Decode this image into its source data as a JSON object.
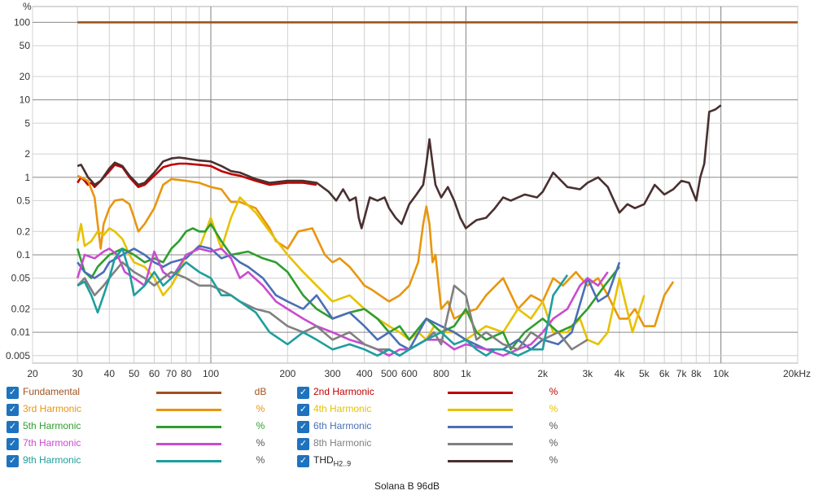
{
  "footer_label": "Solana B 96dB",
  "chart_data": {
    "type": "line",
    "title": "",
    "xlabel": "",
    "ylabel": "%",
    "xscale": "log",
    "yscale": "log",
    "xlim": [
      20,
      20000
    ],
    "ylim": [
      0.004,
      160
    ],
    "grid": true,
    "x_major_ticks": [
      {
        "v": 20,
        "t": "20"
      },
      {
        "v": 30,
        "t": "30"
      },
      {
        "v": 40,
        "t": "40"
      },
      {
        "v": 50,
        "t": "50"
      },
      {
        "v": 60,
        "t": "60"
      },
      {
        "v": 70,
        "t": "70"
      },
      {
        "v": 80,
        "t": "80"
      },
      {
        "v": 100,
        "t": "100"
      },
      {
        "v": 200,
        "t": "200"
      },
      {
        "v": 300,
        "t": "300"
      },
      {
        "v": 400,
        "t": "400"
      },
      {
        "v": 500,
        "t": "500"
      },
      {
        "v": 600,
        "t": "600"
      },
      {
        "v": 800,
        "t": "800"
      },
      {
        "v": 1000,
        "t": "1k"
      },
      {
        "v": 2000,
        "t": "2k"
      },
      {
        "v": 3000,
        "t": "3k"
      },
      {
        "v": 4000,
        "t": "4k"
      },
      {
        "v": 5000,
        "t": "5k"
      },
      {
        "v": 6000,
        "t": "6k"
      },
      {
        "v": 7000,
        "t": "7k"
      },
      {
        "v": 8000,
        "t": "8k"
      },
      {
        "v": 10000,
        "t": "10k"
      },
      {
        "v": 20000,
        "t": "20kHz"
      }
    ],
    "y_ticks": [
      {
        "v": 100,
        "t": "100"
      },
      {
        "v": 50,
        "t": "50"
      },
      {
        "v": 20,
        "t": "20"
      },
      {
        "v": 10,
        "t": "10"
      },
      {
        "v": 5,
        "t": "5"
      },
      {
        "v": 2,
        "t": "2"
      },
      {
        "v": 1,
        "t": "1"
      },
      {
        "v": 0.5,
        "t": "0.5"
      },
      {
        "v": 0.2,
        "t": "0.2"
      },
      {
        "v": 0.1,
        "t": "0.1"
      },
      {
        "v": 0.05,
        "t": "0.05"
      },
      {
        "v": 0.02,
        "t": "0.02"
      },
      {
        "v": 0.01,
        "t": "0.01"
      },
      {
        "v": 0.005,
        "t": "0.005"
      }
    ],
    "legend_position": "bottom",
    "series": [
      {
        "name": "Fundamental",
        "unit": "dB",
        "color": "#a0521e",
        "x": [
          30,
          100,
          1000,
          10000,
          20000
        ],
        "y": [
          100,
          100,
          100,
          100,
          100
        ]
      },
      {
        "name": "2nd Harmonic",
        "unit": "%",
        "color": "#c00000",
        "x": [
          30,
          31,
          32,
          33,
          34,
          35,
          37,
          40,
          42,
          45,
          48,
          52,
          55,
          60,
          65,
          70,
          75,
          80,
          90,
          100,
          110,
          120,
          130,
          150,
          170,
          200,
          230,
          260
        ],
        "y": [
          0.85,
          1.0,
          0.9,
          0.8,
          0.85,
          0.75,
          0.9,
          1.2,
          1.45,
          1.35,
          1.0,
          0.75,
          0.8,
          1.05,
          1.35,
          1.45,
          1.5,
          1.5,
          1.45,
          1.4,
          1.2,
          1.1,
          1.05,
          0.9,
          0.8,
          0.85,
          0.85,
          0.8
        ]
      },
      {
        "name": "3rd Harmonic",
        "unit": "%",
        "color": "#e8960f",
        "x": [
          30,
          31,
          33,
          35,
          36,
          37,
          38,
          40,
          42,
          45,
          48,
          50,
          52,
          55,
          60,
          65,
          70,
          80,
          90,
          100,
          110,
          120,
          130,
          150,
          170,
          180,
          200,
          220,
          250,
          280,
          300,
          320,
          350,
          380,
          400,
          430,
          460,
          500,
          550,
          600,
          650,
          680,
          700,
          720,
          740,
          760,
          800,
          850,
          900,
          1000,
          1100,
          1200,
          1400,
          1600,
          1800,
          2000,
          2200,
          2400,
          2700,
          3000,
          3300,
          3600,
          4000,
          4300,
          4600,
          5000,
          5500,
          6000,
          6500
        ],
        "y": [
          1.05,
          1.0,
          0.9,
          0.55,
          0.25,
          0.12,
          0.25,
          0.4,
          0.5,
          0.52,
          0.45,
          0.3,
          0.2,
          0.25,
          0.4,
          0.8,
          0.95,
          0.9,
          0.85,
          0.75,
          0.7,
          0.48,
          0.48,
          0.4,
          0.22,
          0.15,
          0.12,
          0.2,
          0.22,
          0.1,
          0.08,
          0.09,
          0.07,
          0.05,
          0.04,
          0.035,
          0.03,
          0.025,
          0.03,
          0.04,
          0.08,
          0.25,
          0.42,
          0.25,
          0.08,
          0.1,
          0.02,
          0.025,
          0.015,
          0.018,
          0.02,
          0.03,
          0.05,
          0.02,
          0.03,
          0.025,
          0.05,
          0.04,
          0.06,
          0.04,
          0.05,
          0.03,
          0.015,
          0.015,
          0.02,
          0.012,
          0.012,
          0.03,
          0.045
        ]
      },
      {
        "name": "4th Harmonic",
        "unit": "%",
        "color": "#e6c200",
        "x": [
          30,
          31,
          32,
          34,
          36,
          38,
          40,
          42,
          45,
          48,
          50,
          55,
          60,
          65,
          70,
          75,
          80,
          90,
          100,
          110,
          120,
          130,
          150,
          170,
          200,
          230,
          260,
          300,
          350,
          400,
          450,
          500,
          550,
          600,
          650,
          700,
          750,
          800,
          900,
          1000,
          1200,
          1400,
          1600,
          1800,
          2000,
          2200,
          2500,
          2800,
          3000,
          3300,
          3600,
          4000,
          4500,
          5000
        ],
        "y": [
          0.15,
          0.25,
          0.13,
          0.15,
          0.2,
          0.18,
          0.22,
          0.2,
          0.16,
          0.1,
          0.08,
          0.07,
          0.05,
          0.03,
          0.04,
          0.06,
          0.1,
          0.12,
          0.3,
          0.12,
          0.3,
          0.55,
          0.35,
          0.2,
          0.1,
          0.06,
          0.04,
          0.025,
          0.03,
          0.02,
          0.015,
          0.012,
          0.01,
          0.008,
          0.01,
          0.008,
          0.012,
          0.01,
          0.01,
          0.008,
          0.012,
          0.01,
          0.02,
          0.015,
          0.025,
          0.01,
          0.01,
          0.015,
          0.008,
          0.007,
          0.01,
          0.05,
          0.01,
          0.03
        ]
      },
      {
        "name": "5th Harmonic",
        "unit": "%",
        "color": "#2e9e2e",
        "x": [
          30,
          32,
          34,
          36,
          40,
          45,
          50,
          55,
          60,
          65,
          70,
          75,
          80,
          85,
          90,
          95,
          100,
          110,
          120,
          140,
          160,
          180,
          200,
          230,
          260,
          300,
          350,
          400,
          450,
          500,
          550,
          600,
          700,
          800,
          900,
          1000,
          1100,
          1200,
          1300,
          1400,
          1500,
          1700,
          2000,
          2300,
          2600,
          3000,
          3500,
          4000
        ],
        "y": [
          0.12,
          0.06,
          0.05,
          0.07,
          0.1,
          0.12,
          0.1,
          0.08,
          0.09,
          0.08,
          0.12,
          0.15,
          0.2,
          0.22,
          0.2,
          0.2,
          0.25,
          0.15,
          0.1,
          0.11,
          0.09,
          0.08,
          0.06,
          0.03,
          0.02,
          0.015,
          0.018,
          0.02,
          0.015,
          0.01,
          0.012,
          0.008,
          0.015,
          0.01,
          0.012,
          0.02,
          0.01,
          0.008,
          0.009,
          0.01,
          0.006,
          0.01,
          0.015,
          0.01,
          0.012,
          0.02,
          0.04,
          0.07
        ]
      },
      {
        "name": "6th Harmonic",
        "unit": "%",
        "color": "#4a6fb5",
        "x": [
          30,
          32,
          35,
          38,
          40,
          45,
          50,
          55,
          60,
          65,
          70,
          80,
          90,
          100,
          110,
          120,
          130,
          140,
          160,
          180,
          200,
          230,
          260,
          300,
          350,
          400,
          450,
          500,
          550,
          600,
          700,
          800,
          900,
          1000,
          1200,
          1400,
          1600,
          1800,
          2000,
          2300,
          2600,
          3000,
          3300,
          3600,
          4000
        ],
        "y": [
          0.08,
          0.06,
          0.05,
          0.06,
          0.08,
          0.1,
          0.12,
          0.1,
          0.08,
          0.07,
          0.08,
          0.09,
          0.13,
          0.12,
          0.09,
          0.1,
          0.08,
          0.07,
          0.05,
          0.03,
          0.025,
          0.02,
          0.03,
          0.015,
          0.018,
          0.012,
          0.008,
          0.01,
          0.007,
          0.006,
          0.015,
          0.012,
          0.01,
          0.008,
          0.006,
          0.006,
          0.008,
          0.006,
          0.008,
          0.007,
          0.01,
          0.05,
          0.025,
          0.03,
          0.08
        ]
      },
      {
        "name": "7th Harmonic",
        "unit": "%",
        "color": "#c94bd0",
        "x": [
          30,
          32,
          35,
          38,
          40,
          43,
          46,
          50,
          55,
          60,
          65,
          70,
          75,
          80,
          90,
          100,
          110,
          120,
          130,
          140,
          160,
          180,
          200,
          230,
          260,
          300,
          350,
          400,
          450,
          500,
          550,
          600,
          700,
          800,
          900,
          1000,
          1200,
          1400,
          1600,
          1800,
          2000,
          2200,
          2500,
          2800,
          3000,
          3300,
          3600
        ],
        "y": [
          0.05,
          0.1,
          0.09,
          0.11,
          0.12,
          0.1,
          0.06,
          0.05,
          0.04,
          0.11,
          0.06,
          0.05,
          0.07,
          0.1,
          0.12,
          0.11,
          0.12,
          0.09,
          0.05,
          0.06,
          0.04,
          0.025,
          0.02,
          0.015,
          0.012,
          0.01,
          0.008,
          0.007,
          0.006,
          0.005,
          0.006,
          0.006,
          0.008,
          0.008,
          0.006,
          0.007,
          0.006,
          0.005,
          0.006,
          0.007,
          0.01,
          0.015,
          0.02,
          0.04,
          0.05,
          0.04,
          0.06
        ]
      },
      {
        "name": "8th Harmonic",
        "unit": "%",
        "color": "#808080",
        "x": [
          30,
          32,
          35,
          38,
          40,
          45,
          50,
          55,
          60,
          65,
          70,
          80,
          90,
          100,
          110,
          120,
          130,
          150,
          170,
          200,
          230,
          260,
          300,
          350,
          400,
          450,
          500,
          550,
          600,
          650,
          700,
          750,
          800,
          900,
          1000,
          1100,
          1200,
          1400,
          1600,
          1800,
          2000,
          2300,
          2600,
          3000
        ],
        "y": [
          0.04,
          0.05,
          0.03,
          0.04,
          0.05,
          0.08,
          0.06,
          0.05,
          0.04,
          0.05,
          0.06,
          0.05,
          0.04,
          0.04,
          0.035,
          0.03,
          0.025,
          0.02,
          0.018,
          0.012,
          0.01,
          0.012,
          0.008,
          0.01,
          0.007,
          0.006,
          0.006,
          0.005,
          0.006,
          0.007,
          0.008,
          0.01,
          0.007,
          0.04,
          0.03,
          0.008,
          0.01,
          0.007,
          0.006,
          0.01,
          0.008,
          0.01,
          0.006,
          0.008
        ]
      },
      {
        "name": "9th Harmonic",
        "unit": "%",
        "color": "#1e9e9e",
        "x": [
          30,
          32,
          34,
          36,
          38,
          40,
          42,
          45,
          48,
          50,
          55,
          60,
          65,
          70,
          80,
          90,
          100,
          110,
          120,
          130,
          150,
          170,
          200,
          230,
          260,
          300,
          350,
          400,
          450,
          500,
          550,
          600,
          700,
          800,
          900,
          1000,
          1100,
          1200,
          1300,
          1400,
          1600,
          1800,
          2000,
          2200,
          2500
        ],
        "y": [
          0.04,
          0.045,
          0.03,
          0.018,
          0.03,
          0.05,
          0.09,
          0.12,
          0.06,
          0.03,
          0.04,
          0.06,
          0.04,
          0.05,
          0.08,
          0.06,
          0.05,
          0.03,
          0.03,
          0.025,
          0.018,
          0.01,
          0.007,
          0.01,
          0.008,
          0.006,
          0.007,
          0.006,
          0.005,
          0.006,
          0.005,
          0.006,
          0.008,
          0.01,
          0.007,
          0.008,
          0.006,
          0.005,
          0.006,
          0.006,
          0.005,
          0.006,
          0.006,
          0.03,
          0.055
        ]
      },
      {
        "name": "THD",
        "name_sub": "H2..9",
        "unit": "%",
        "color": "#4a3030",
        "x": [
          30,
          31,
          32,
          33,
          34,
          35,
          37,
          40,
          42,
          45,
          48,
          52,
          55,
          60,
          65,
          70,
          75,
          80,
          90,
          100,
          110,
          120,
          130,
          150,
          170,
          200,
          230,
          260,
          290,
          310,
          330,
          350,
          370,
          380,
          390,
          400,
          420,
          450,
          480,
          500,
          530,
          560,
          600,
          640,
          680,
          700,
          720,
          740,
          760,
          800,
          850,
          900,
          950,
          1000,
          1050,
          1100,
          1200,
          1300,
          1400,
          1500,
          1700,
          1900,
          2000,
          2200,
          2500,
          2800,
          3000,
          3300,
          3600,
          4000,
          4300,
          4600,
          5000,
          5500,
          6000,
          6500,
          7000,
          7500,
          8000,
          8300,
          8600,
          9000,
          9500,
          10000
        ],
        "y": [
          1.4,
          1.45,
          1.2,
          1.0,
          0.9,
          0.8,
          0.9,
          1.3,
          1.55,
          1.4,
          1.05,
          0.8,
          0.85,
          1.15,
          1.6,
          1.75,
          1.8,
          1.75,
          1.65,
          1.6,
          1.4,
          1.2,
          1.15,
          0.95,
          0.85,
          0.9,
          0.9,
          0.85,
          0.65,
          0.5,
          0.7,
          0.5,
          0.55,
          0.3,
          0.22,
          0.3,
          0.55,
          0.5,
          0.55,
          0.4,
          0.3,
          0.25,
          0.45,
          0.6,
          0.8,
          1.5,
          3.1,
          1.5,
          0.8,
          0.55,
          0.75,
          0.5,
          0.3,
          0.22,
          0.25,
          0.28,
          0.3,
          0.4,
          0.55,
          0.5,
          0.6,
          0.55,
          0.65,
          1.15,
          0.75,
          0.7,
          0.85,
          1.0,
          0.75,
          0.35,
          0.45,
          0.4,
          0.45,
          0.8,
          0.6,
          0.7,
          0.9,
          0.85,
          0.5,
          1.0,
          1.5,
          7.0,
          7.5,
          8.5
        ]
      }
    ]
  }
}
